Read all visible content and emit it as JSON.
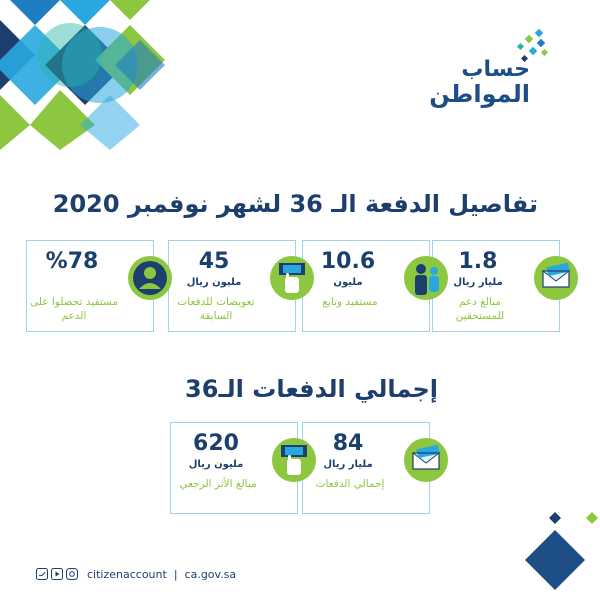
{
  "colors": {
    "navy": "#1d3f6e",
    "blue": "#1f7dc1",
    "sky": "#29a8e0",
    "green": "#8dc63f",
    "teal": "#2bb3a8"
  },
  "logo": {
    "line1": "حساب",
    "line2": "المواطن"
  },
  "heading1": "تفاصيل الدفعة الـ 36 لشهر نوفمبر 2020",
  "heading2": "إجمالي الدفعات الـ36",
  "cards": [
    {
      "value": "1.8",
      "unit": "مليار ريال",
      "label": "مبالغ دعم للمستحقين",
      "icon": "envelope-cash-icon"
    },
    {
      "value": "10.6",
      "unit": "مليون",
      "label": "مستفيد وتابع",
      "icon": "people-icon"
    },
    {
      "value": "45",
      "unit": "مليون ريال",
      "label": "تعويضات للدفعات السابقة",
      "icon": "hand-money-icon"
    },
    {
      "value": "%78",
      "unit": "",
      "label": "مستفيد تحصلوا على الدعم",
      "icon": "user-icon"
    },
    {
      "value": "84",
      "unit": "مليار ريال",
      "label": "إجمالي الدفعات",
      "icon": "envelope-cash-icon"
    },
    {
      "value": "620",
      "unit": "مليون ريال",
      "label": "مبالغ الأثر الرجعي",
      "icon": "hand-money-icon"
    }
  ],
  "footer": {
    "handle": "citizenaccount",
    "site": "ca.gov.sa",
    "icons": [
      "twitter-icon",
      "youtube-icon",
      "instagram-icon"
    ]
  }
}
